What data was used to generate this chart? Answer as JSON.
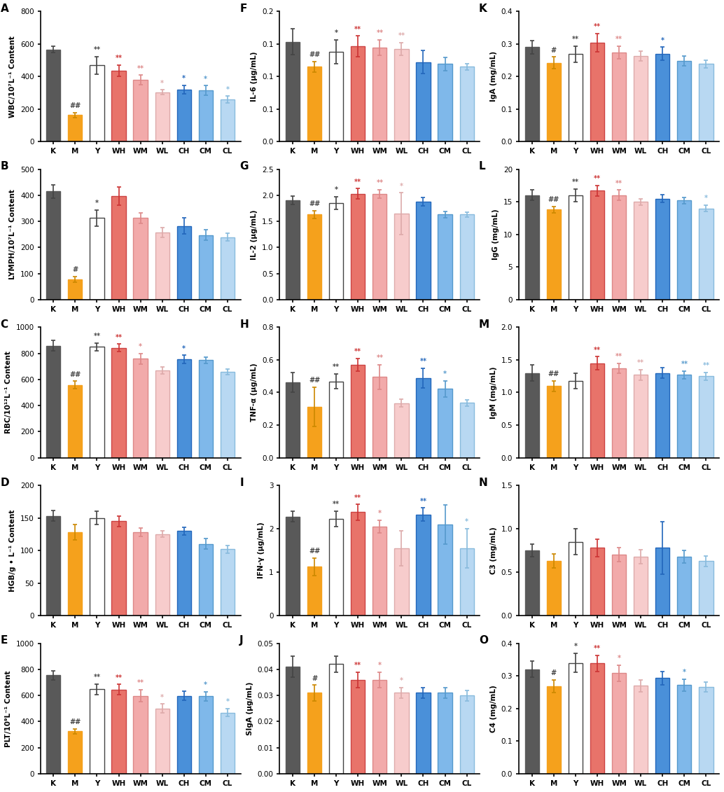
{
  "categories": [
    "K",
    "M",
    "Y",
    "WH",
    "WM",
    "WL",
    "CH",
    "CM",
    "CL"
  ],
  "subplots": {
    "A": {
      "title": "A",
      "ylabel": "WBC/10⁷L⁻¹ Content",
      "ylim": [
        0,
        800
      ],
      "yticks": [
        0,
        200,
        400,
        600,
        800
      ],
      "values": [
        565,
        163,
        468,
        435,
        378,
        303,
        320,
        313,
        260
      ],
      "errors": [
        20,
        15,
        55,
        35,
        30,
        15,
        25,
        30,
        20
      ],
      "sig_above": [
        "",
        "##",
        "**",
        "**",
        "**",
        "*",
        "*",
        "*",
        "*"
      ]
    },
    "B": {
      "title": "B",
      "ylabel": "LYMPH/10⁷L⁻¹ Content",
      "ylim": [
        0,
        500
      ],
      "yticks": [
        0,
        100,
        200,
        300,
        400,
        500
      ],
      "values": [
        415,
        78,
        313,
        398,
        313,
        258,
        283,
        248,
        240
      ],
      "errors": [
        25,
        12,
        30,
        35,
        20,
        18,
        30,
        20,
        15
      ],
      "sig_above": [
        "",
        "#",
        "*",
        "",
        "",
        "",
        "",
        "",
        ""
      ]
    },
    "C": {
      "title": "C",
      "ylabel": "RBC/10¹²L⁻¹ Content",
      "ylim": [
        0,
        1000
      ],
      "yticks": [
        0,
        200,
        400,
        600,
        800,
        1000
      ],
      "values": [
        858,
        558,
        850,
        843,
        758,
        668,
        755,
        748,
        660
      ],
      "errors": [
        40,
        28,
        30,
        28,
        40,
        25,
        30,
        25,
        22
      ],
      "sig_above": [
        "",
        "##",
        "**",
        "**",
        "*",
        "",
        "*",
        "",
        ""
      ]
    },
    "D": {
      "title": "D",
      "ylabel": "HGB/g • L⁻¹ Content",
      "ylim": [
        0,
        200
      ],
      "yticks": [
        0,
        50,
        100,
        150,
        200
      ],
      "values": [
        153,
        128,
        150,
        145,
        128,
        125,
        130,
        110,
        102
      ],
      "errors": [
        8,
        12,
        10,
        8,
        6,
        5,
        6,
        8,
        6
      ],
      "sig_above": [
        "",
        "",
        "",
        "",
        "",
        "",
        "",
        "",
        ""
      ]
    },
    "E": {
      "title": "E",
      "ylabel": "PLT/10⁹L⁻¹ Content",
      "ylim": [
        0,
        1000
      ],
      "yticks": [
        0,
        200,
        400,
        600,
        800,
        1000
      ],
      "values": [
        755,
        325,
        648,
        645,
        598,
        500,
        598,
        593,
        468
      ],
      "errors": [
        35,
        20,
        40,
        40,
        45,
        35,
        35,
        35,
        30
      ],
      "sig_above": [
        "",
        "##",
        "**",
        "**",
        "**",
        "*",
        "",
        "*",
        "*"
      ]
    },
    "F": {
      "title": "F",
      "ylabel": "IL-6 (μg/mL)",
      "ylim": [
        0,
        0.2
      ],
      "yticks": [
        0.0,
        0.05,
        0.1,
        0.15,
        0.2
      ],
      "values": [
        0.153,
        0.115,
        0.138,
        0.146,
        0.144,
        0.142,
        0.122,
        0.119,
        0.115
      ],
      "errors": [
        0.02,
        0.008,
        0.018,
        0.016,
        0.012,
        0.01,
        0.018,
        0.01,
        0.005
      ],
      "sig_above": [
        "",
        "##",
        "*",
        "**",
        "**",
        "**",
        "",
        "",
        ""
      ]
    },
    "G": {
      "title": "G",
      "ylabel": "IL-2 (μg/mL)",
      "ylim": [
        0,
        2.5
      ],
      "yticks": [
        0.0,
        0.5,
        1.0,
        1.5,
        2.0,
        2.5
      ],
      "values": [
        1.9,
        1.63,
        1.85,
        2.03,
        2.03,
        1.65,
        1.88,
        1.63,
        1.63
      ],
      "errors": [
        0.08,
        0.08,
        0.12,
        0.1,
        0.08,
        0.4,
        0.08,
        0.06,
        0.05
      ],
      "sig_above": [
        "",
        "##",
        "*",
        "**",
        "**",
        "*",
        "",
        "",
        ""
      ]
    },
    "H": {
      "title": "H",
      "ylabel": "TNF-α (μg/mL)",
      "ylim": [
        0,
        0.8
      ],
      "yticks": [
        0.0,
        0.2,
        0.4,
        0.6,
        0.8
      ],
      "values": [
        0.462,
        0.313,
        0.468,
        0.57,
        0.495,
        0.335,
        0.488,
        0.422,
        0.337
      ],
      "errors": [
        0.06,
        0.12,
        0.045,
        0.04,
        0.075,
        0.025,
        0.06,
        0.05,
        0.02
      ],
      "sig_above": [
        "",
        "##",
        "**",
        "**",
        "**",
        "",
        "**",
        "*",
        ""
      ]
    },
    "I": {
      "title": "I",
      "ylabel": "IFN-γ (μg/mL)",
      "ylim": [
        0,
        3
      ],
      "yticks": [
        0,
        1,
        2,
        3
      ],
      "values": [
        2.28,
        1.13,
        2.23,
        2.38,
        2.05,
        1.55,
        2.33,
        2.1,
        1.55
      ],
      "errors": [
        0.12,
        0.2,
        0.18,
        0.18,
        0.15,
        0.4,
        0.15,
        0.45,
        0.45
      ],
      "sig_above": [
        "",
        "##",
        "**",
        "**",
        "*",
        "",
        "**",
        "",
        "*"
      ]
    },
    "J": {
      "title": "J",
      "ylabel": "SIgA (μg/mL)",
      "ylim": [
        0,
        0.05
      ],
      "yticks": [
        0.0,
        0.01,
        0.02,
        0.03,
        0.04,
        0.05
      ],
      "values": [
        0.041,
        0.031,
        0.042,
        0.036,
        0.036,
        0.031,
        0.031,
        0.031,
        0.03
      ],
      "errors": [
        0.004,
        0.003,
        0.003,
        0.003,
        0.003,
        0.002,
        0.002,
        0.002,
        0.002
      ],
      "sig_above": [
        "",
        "#",
        "",
        "**",
        "*",
        "*",
        "",
        "",
        ""
      ]
    },
    "K": {
      "title": "K",
      "ylabel": "IgA (mg/mL)",
      "ylim": [
        0,
        0.4
      ],
      "yticks": [
        0.0,
        0.1,
        0.2,
        0.3,
        0.4
      ],
      "values": [
        0.29,
        0.242,
        0.268,
        0.303,
        0.273,
        0.263,
        0.27,
        0.248,
        0.238
      ],
      "errors": [
        0.02,
        0.018,
        0.025,
        0.028,
        0.02,
        0.015,
        0.02,
        0.015,
        0.012
      ],
      "sig_above": [
        "",
        "#",
        "**",
        "**",
        "**",
        "",
        "*",
        "",
        ""
      ]
    },
    "L": {
      "title": "L",
      "ylabel": "IgG (mg/mL)",
      "ylim": [
        0,
        20
      ],
      "yticks": [
        0,
        5,
        10,
        15,
        20
      ],
      "values": [
        16.0,
        13.8,
        16.0,
        16.7,
        16.0,
        15.0,
        15.5,
        15.2,
        14.0
      ],
      "errors": [
        0.8,
        0.5,
        1.0,
        0.8,
        0.8,
        0.5,
        0.6,
        0.5,
        0.5
      ],
      "sig_above": [
        "",
        "##",
        "**",
        "**",
        "**",
        "",
        "",
        "",
        "*"
      ]
    },
    "M": {
      "title": "M",
      "ylabel": "IgM (mg/mL)",
      "ylim": [
        0,
        2.0
      ],
      "yticks": [
        0.0,
        0.5,
        1.0,
        1.5,
        2.0
      ],
      "values": [
        1.3,
        1.1,
        1.18,
        1.45,
        1.37,
        1.27,
        1.3,
        1.27,
        1.25
      ],
      "errors": [
        0.12,
        0.08,
        0.12,
        0.1,
        0.08,
        0.08,
        0.08,
        0.06,
        0.06
      ],
      "sig_above": [
        "",
        "##",
        "",
        "**",
        "**",
        "**",
        "",
        "**",
        "**"
      ]
    },
    "N": {
      "title": "N",
      "ylabel": "C3 (mg/mL)",
      "ylim": [
        0,
        1.5
      ],
      "yticks": [
        0.0,
        0.5,
        1.0,
        1.5
      ],
      "values": [
        0.75,
        0.63,
        0.85,
        0.78,
        0.7,
        0.68,
        0.78,
        0.68,
        0.63
      ],
      "errors": [
        0.07,
        0.08,
        0.15,
        0.1,
        0.08,
        0.08,
        0.3,
        0.07,
        0.06
      ],
      "sig_above": [
        "",
        "",
        "",
        "",
        "",
        "",
        "",
        "",
        ""
      ]
    },
    "O": {
      "title": "O",
      "ylabel": "C4 (mg/mL)",
      "ylim": [
        0,
        0.4
      ],
      "yticks": [
        0.0,
        0.1,
        0.2,
        0.3,
        0.4
      ],
      "values": [
        0.32,
        0.268,
        0.34,
        0.338,
        0.308,
        0.27,
        0.293,
        0.272,
        0.265
      ],
      "errors": [
        0.025,
        0.02,
        0.03,
        0.025,
        0.025,
        0.018,
        0.02,
        0.018,
        0.015
      ],
      "sig_above": [
        "",
        "#",
        "*",
        "**",
        "*",
        "",
        "",
        "*",
        ""
      ]
    }
  },
  "subplot_order_colmajor": [
    "A",
    "F",
    "K",
    "B",
    "G",
    "L",
    "C",
    "H",
    "M",
    "D",
    "I",
    "N",
    "E",
    "J",
    "O"
  ],
  "bar_colors": {
    "K": "#595959",
    "M": "#F5A11C",
    "Y": "#FFFFFF",
    "WH": "#E8736A",
    "WM": "#F2AAAA",
    "WL": "#F7CCCC",
    "CH": "#4A90D9",
    "CM": "#7FB8EA",
    "CL": "#B8D8F2"
  },
  "edge_colors": {
    "K": "#595959",
    "M": "#F5A11C",
    "Y": "#444444",
    "WH": "#CC4444",
    "WM": "#DD8888",
    "WL": "#DDAAAA",
    "CH": "#2266BB",
    "CM": "#5599CC",
    "CL": "#88BBDD"
  },
  "err_colors": {
    "K": "#444444",
    "M": "#CC8800",
    "Y": "#444444",
    "WH": "#CC3333",
    "WM": "#DD8888",
    "WL": "#DDAAAA",
    "CH": "#2266BB",
    "CM": "#5599CC",
    "CL": "#88BBDD"
  },
  "sig_colors": {
    "K": "#444444",
    "M": "#CC8800",
    "Y": "#444444",
    "WH": "#CC3333",
    "WM": "#DD8888",
    "WL": "#DDAAAA",
    "CH": "#2266BB",
    "CM": "#5599CC",
    "CL": "#88BBDD"
  },
  "hash_sig_color": "#444444"
}
